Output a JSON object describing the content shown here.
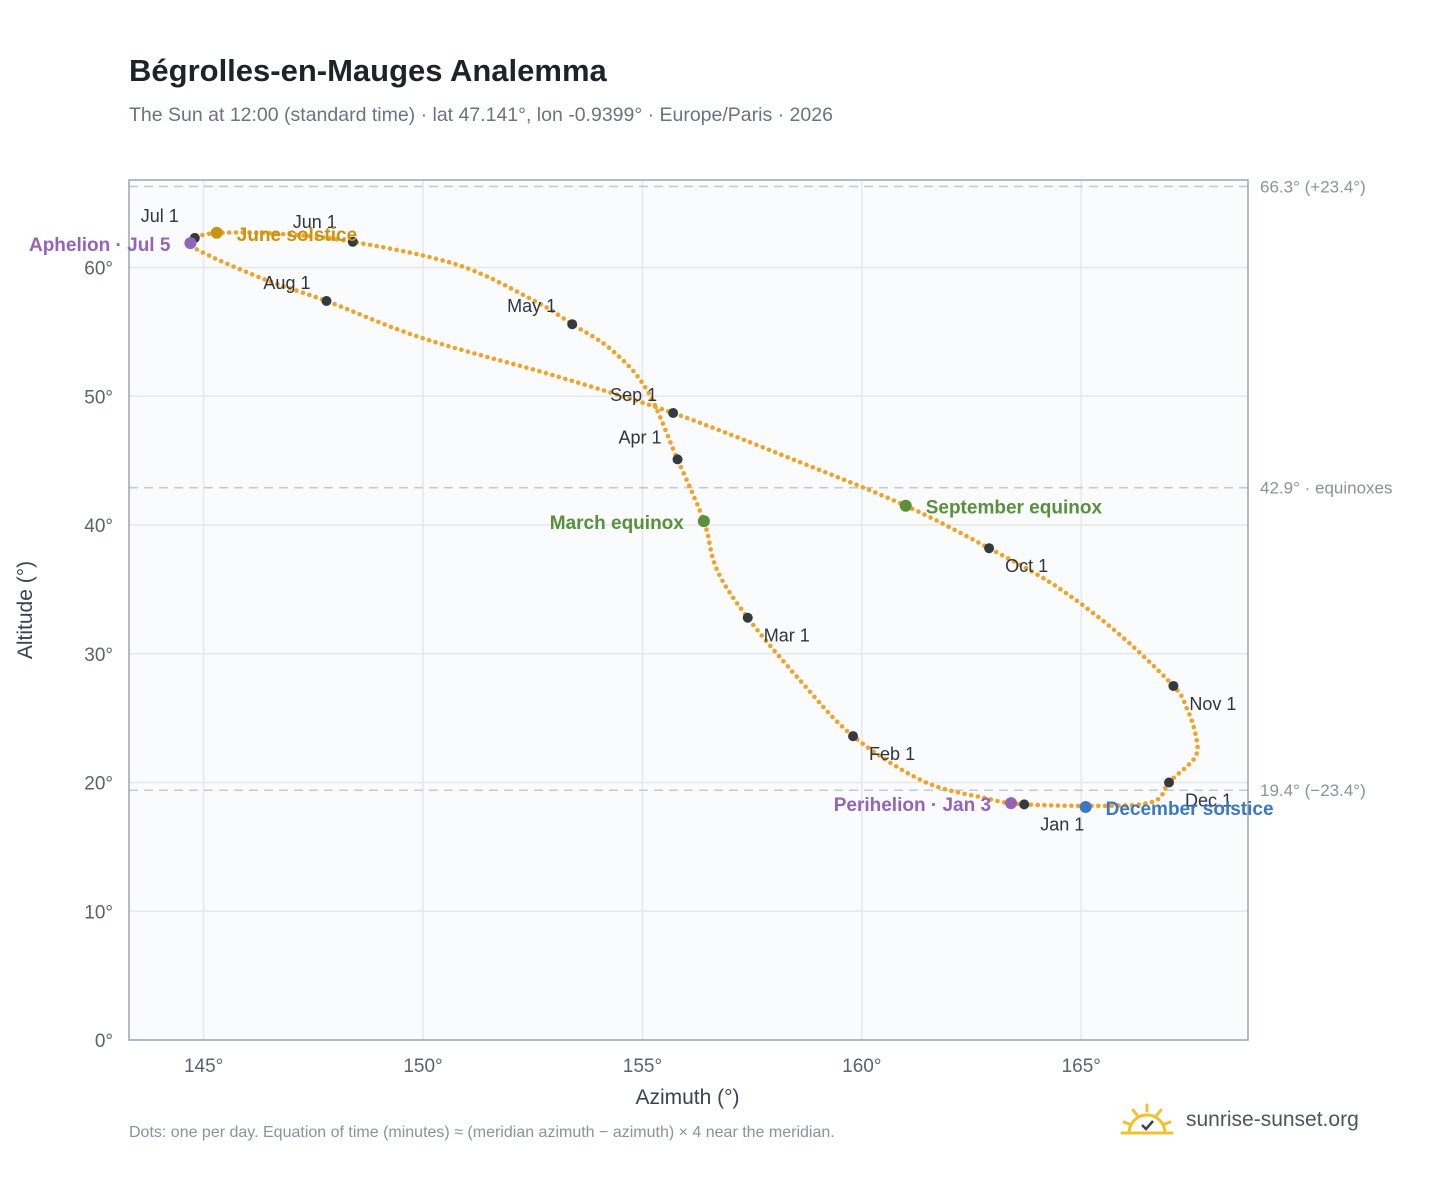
{
  "title": "Bégrolles-en-Mauges Analemma",
  "subtitle": "The Sun at 12:00 (standard time) · lat 47.141°, lon -0.9399° · Europe/Paris · 2026",
  "footnote": "Dots: one per day. Equation of time (minutes) ≈ (meridian azimuth − azimuth) × 4 near the meridian.",
  "brand": "sunrise-sunset.org",
  "colors": {
    "curve": "#f0a32a",
    "month_marker": "#343a40",
    "solstice_june": "#c9940f",
    "solstice_december": "#3b78c2",
    "equinox": "#5a8f3c",
    "apsis": "#9364b8",
    "plot_bg": "#f9fbfd",
    "grid": "#e5e8ec",
    "axis": "#9aa5b1"
  },
  "chart_data": {
    "type": "scatter",
    "title": "Bégrolles-en-Mauges Analemma",
    "xlabel": "Azimuth (°)",
    "ylabel": "Altitude (°)",
    "xlim": [
      143.3,
      168.8
    ],
    "ylim": [
      0,
      66.8
    ],
    "xticks": [
      145,
      150,
      155,
      160,
      165
    ],
    "xtick_labels": [
      "145°",
      "150°",
      "155°",
      "160°",
      "165°"
    ],
    "yticks": [
      0,
      10,
      20,
      30,
      40,
      50,
      60
    ],
    "ytick_labels": [
      "0°",
      "10°",
      "20°",
      "30°",
      "40°",
      "50°",
      "60°"
    ],
    "grid": true,
    "series_note": "one dot per day",
    "reference_lines": [
      {
        "altitude": 66.3,
        "label": "66.3° (+23.4°)"
      },
      {
        "altitude": 42.9,
        "label": "42.9° · equinoxes"
      },
      {
        "altitude": 19.4,
        "label": "19.4° (−23.4°)"
      }
    ],
    "path_points": [
      {
        "label": "Jan 1",
        "az": 163.7,
        "alt": 18.3
      },
      {
        "label": "",
        "az": 165.8,
        "alt": 18.2
      },
      {
        "label": "",
        "az": 166.7,
        "alt": 18.6
      },
      {
        "label": "Dec 1",
        "az": 167.0,
        "alt": 20.0
      },
      {
        "label": "",
        "az": 167.6,
        "alt": 22.0
      },
      {
        "label": "",
        "az": 167.6,
        "alt": 23.8
      },
      {
        "label": "",
        "az": 167.4,
        "alt": 25.8
      },
      {
        "label": "Nov 1",
        "az": 167.1,
        "alt": 27.5
      },
      {
        "label": "",
        "az": 165.8,
        "alt": 31.7
      },
      {
        "label": "",
        "az": 164.4,
        "alt": 35.3
      },
      {
        "label": "Oct 1",
        "az": 162.9,
        "alt": 38.2
      },
      {
        "label": "",
        "az": 161.0,
        "alt": 41.5
      },
      {
        "label": "",
        "az": 158.5,
        "alt": 45.0
      },
      {
        "label": "Sep 1",
        "az": 155.7,
        "alt": 48.7
      },
      {
        "label": "",
        "az": 153.0,
        "alt": 51.6
      },
      {
        "label": "",
        "az": 150.0,
        "alt": 54.5
      },
      {
        "label": "Aug 1",
        "az": 147.8,
        "alt": 57.4
      },
      {
        "label": "",
        "az": 146.3,
        "alt": 59.2
      },
      {
        "label": "",
        "az": 144.8,
        "alt": 61.5
      },
      {
        "label": "Jul 1",
        "az": 144.8,
        "alt": 62.3
      },
      {
        "label": "",
        "az": 145.4,
        "alt": 62.7
      },
      {
        "label": "",
        "az": 146.8,
        "alt": 62.6
      },
      {
        "label": "Jun 1",
        "az": 148.4,
        "alt": 62.0
      },
      {
        "label": "",
        "az": 150.8,
        "alt": 60.2
      },
      {
        "label": "",
        "az": 152.6,
        "alt": 57.3
      },
      {
        "label": "May 1",
        "az": 153.4,
        "alt": 55.6
      },
      {
        "label": "",
        "az": 154.3,
        "alt": 53.6
      },
      {
        "label": "",
        "az": 155.1,
        "alt": 50.5
      },
      {
        "label": "Apr 1",
        "az": 155.8,
        "alt": 45.1
      },
      {
        "label": "",
        "az": 156.4,
        "alt": 40.3
      },
      {
        "label": "",
        "az": 156.7,
        "alt": 36.5
      },
      {
        "label": "Mar 1",
        "az": 157.4,
        "alt": 32.8
      },
      {
        "label": "",
        "az": 158.6,
        "alt": 27.9
      },
      {
        "label": "Feb 1",
        "az": 159.8,
        "alt": 23.6
      },
      {
        "label": "",
        "az": 161.4,
        "alt": 20.1
      },
      {
        "label": "",
        "az": 162.8,
        "alt": 18.8
      },
      {
        "label": "Jan 1",
        "az": 163.7,
        "alt": 18.3
      }
    ],
    "month_markers": [
      {
        "label": "Jan 1",
        "az": 163.7,
        "alt": 18.3
      },
      {
        "label": "Feb 1",
        "az": 159.8,
        "alt": 23.6
      },
      {
        "label": "Mar 1",
        "az": 157.4,
        "alt": 32.8
      },
      {
        "label": "Apr 1",
        "az": 155.8,
        "alt": 45.1
      },
      {
        "label": "May 1",
        "az": 153.4,
        "alt": 55.6
      },
      {
        "label": "Jun 1",
        "az": 148.4,
        "alt": 62.0
      },
      {
        "label": "Jul 1",
        "az": 144.8,
        "alt": 62.3
      },
      {
        "label": "Aug 1",
        "az": 147.8,
        "alt": 57.4
      },
      {
        "label": "Sep 1",
        "az": 155.7,
        "alt": 48.7
      },
      {
        "label": "Oct 1",
        "az": 162.9,
        "alt": 38.2
      },
      {
        "label": "Nov 1",
        "az": 167.1,
        "alt": 27.5
      },
      {
        "label": "Dec 1",
        "az": 167.0,
        "alt": 20.0
      }
    ],
    "events": [
      {
        "label": "June solstice",
        "az": 145.3,
        "alt": 62.7,
        "color_key": "solstice_june"
      },
      {
        "label": "December solstice",
        "az": 165.1,
        "alt": 18.1,
        "color_key": "solstice_december"
      },
      {
        "label": "March equinox",
        "az": 156.4,
        "alt": 40.3,
        "color_key": "equinox"
      },
      {
        "label": "September equinox",
        "az": 161.0,
        "alt": 41.5,
        "color_key": "equinox"
      },
      {
        "label": "Aphelion · Jul 5",
        "az": 144.7,
        "alt": 61.9,
        "color_key": "apsis"
      },
      {
        "label": "Perihelion · Jan 3",
        "az": 163.4,
        "alt": 18.4,
        "color_key": "apsis"
      }
    ]
  }
}
